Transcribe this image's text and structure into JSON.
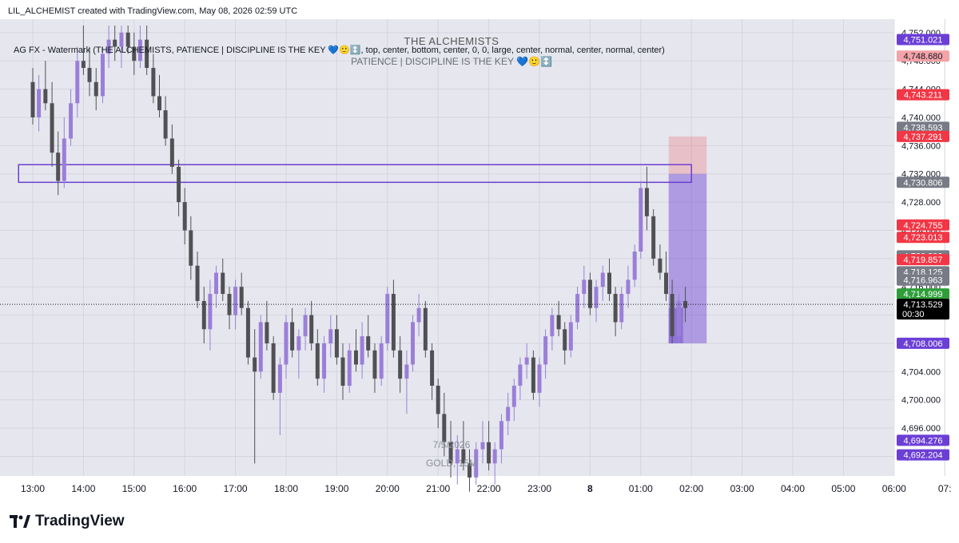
{
  "header": {
    "created_text": "LIL_ALCHEMIST created with TradingView.com, May 08, 2026 02:59 UTC"
  },
  "indicator": {
    "label": "AG FX - Watermark (THE ALCHEMISTS, PATIENCE  |  DISCIPLINE  IS THE KEY 💙🙂↕️, top, center, bottom, center, 0, 0, large, center, normal, center, normal, center)"
  },
  "watermark": {
    "title": "THE ALCHEMISTS",
    "subtitle": "PATIENCE  |  DISCIPLINE  IS THE KEY 💙🙂↕️",
    "date": "7/5/2026",
    "symbol": "GOLD, 15M"
  },
  "footer": {
    "brand": "TradingView"
  },
  "colors": {
    "bg": "#e6e7ee",
    "bull": "#9a7fd8",
    "bear": "#505055",
    "purple_badge": "#6b3fd6",
    "red_badge": "#f23645",
    "pink_badge": "#f4a3a8",
    "gray_badge": "#787b86",
    "green_badge": "#2e9e3a",
    "black_badge": "#000000",
    "zone_border": "#6a3fd0"
  },
  "chart_data": {
    "type": "candlestick",
    "symbol": "GOLD, 15M",
    "ylim": [
      4689,
      4753
    ],
    "y_ticks": [
      "4,752.000",
      "4,748.000",
      "4,744.000",
      "4,740.000",
      "4,736.000",
      "4,732.000",
      "4,728.000",
      "4,724.000",
      "4,720.000",
      "4,716.000",
      "4,712.000",
      "4,708.000",
      "4,704.000",
      "4,700.000",
      "4,696.000",
      "4,692.000"
    ],
    "x_ticks": [
      "13:00",
      "14:00",
      "15:00",
      "16:00",
      "17:00",
      "18:00",
      "19:00",
      "20:00",
      "21:00",
      "22:00",
      "23:00",
      "8",
      "01:00",
      "02:00",
      "03:00",
      "04:00",
      "05:00",
      "06:00",
      "07:"
    ],
    "current_price": 4713.529,
    "countdown": "00:30",
    "price_labels": [
      {
        "text": "4,751.021",
        "value": 4751.021,
        "style": "purple"
      },
      {
        "text": "4,748.680",
        "value": 4748.68,
        "style": "pink"
      },
      {
        "text": "4,743.211",
        "value": 4743.211,
        "style": "red"
      },
      {
        "text": "4,738.593",
        "value": 4738.593,
        "style": "gray"
      },
      {
        "text": "4,737.291",
        "value": 4737.291,
        "style": "red"
      },
      {
        "text": "4,730.806",
        "value": 4730.806,
        "style": "gray"
      },
      {
        "text": "4,724.755",
        "value": 4724.755,
        "style": "red"
      },
      {
        "text": "4,723.013",
        "value": 4723.013,
        "style": "red"
      },
      {
        "text": "4,720.390",
        "value": 4720.39,
        "style": "gray"
      },
      {
        "text": "4,719.857",
        "value": 4719.857,
        "style": "red"
      },
      {
        "text": "4,718.125",
        "value": 4718.125,
        "style": "gray"
      },
      {
        "text": "4,716.963",
        "value": 4716.963,
        "style": "gray"
      },
      {
        "text": "4,714.999",
        "value": 4714.999,
        "style": "green"
      },
      {
        "text": "4,713.529",
        "value": 4713.529,
        "style": "black"
      },
      {
        "text": "4,708.006",
        "value": 4708.006,
        "style": "purple"
      },
      {
        "text": "4,694.276",
        "value": 4694.276,
        "style": "purple"
      },
      {
        "text": "4,692.204",
        "value": 4692.204,
        "style": "purple"
      }
    ],
    "zone": {
      "t_start": 12.72,
      "t_end": 26.0,
      "top": 4733.3,
      "bottom": 4730.8
    },
    "short_position": {
      "t_start": 25.55,
      "t_end": 26.3,
      "entry": 4732.0,
      "stop": 4737.291,
      "target": 4708.006
    },
    "candles": [
      [
        13.0,
        4745,
        4747,
        4739,
        4740
      ],
      [
        13.12,
        4740,
        4746,
        4738,
        4744
      ],
      [
        13.25,
        4744,
        4748,
        4741,
        4742
      ],
      [
        13.38,
        4742,
        4745,
        4733,
        4735
      ],
      [
        13.5,
        4735,
        4738,
        4729,
        4731
      ],
      [
        13.62,
        4731,
        4740,
        4730,
        4737
      ],
      [
        13.75,
        4737,
        4744,
        4736,
        4742
      ],
      [
        13.88,
        4742,
        4750,
        4740,
        4748
      ],
      [
        14.0,
        4748,
        4753,
        4746,
        4747
      ],
      [
        14.12,
        4747,
        4750,
        4743,
        4745
      ],
      [
        14.25,
        4745,
        4747,
        4741,
        4743
      ],
      [
        14.38,
        4743,
        4750,
        4742,
        4749
      ],
      [
        14.5,
        4749,
        4753,
        4747,
        4751
      ],
      [
        14.62,
        4751,
        4753,
        4748,
        4750
      ],
      [
        14.75,
        4750,
        4753,
        4747,
        4752
      ],
      [
        14.88,
        4752,
        4753,
        4749,
        4750
      ],
      [
        15.0,
        4750,
        4752,
        4746,
        4748
      ],
      [
        15.12,
        4748,
        4753,
        4747,
        4751
      ],
      [
        15.25,
        4751,
        4753,
        4746,
        4747
      ],
      [
        15.38,
        4747,
        4749,
        4742,
        4743
      ],
      [
        15.5,
        4743,
        4746,
        4740,
        4741
      ],
      [
        15.62,
        4741,
        4743,
        4736,
        4737
      ],
      [
        15.75,
        4737,
        4739,
        4732,
        4733
      ],
      [
        15.88,
        4733,
        4734,
        4726,
        4728
      ],
      [
        16.0,
        4728,
        4730,
        4722,
        4724
      ],
      [
        16.12,
        4724,
        4726,
        4717,
        4719
      ],
      [
        16.25,
        4719,
        4721,
        4713,
        4714
      ],
      [
        16.38,
        4714,
        4716,
        4708,
        4710
      ],
      [
        16.5,
        4710,
        4717,
        4707,
        4715
      ],
      [
        16.62,
        4715,
        4719,
        4713,
        4718
      ],
      [
        16.75,
        4718,
        4720,
        4714,
        4715
      ],
      [
        16.88,
        4715,
        4716,
        4710,
        4712
      ],
      [
        17.0,
        4712,
        4717,
        4710,
        4716
      ],
      [
        17.12,
        4716,
        4718,
        4712,
        4713
      ],
      [
        17.25,
        4713,
        4714,
        4705,
        4706
      ],
      [
        17.38,
        4706,
        4710,
        4691,
        4704
      ],
      [
        17.5,
        4704,
        4712,
        4703,
        4711
      ],
      [
        17.62,
        4711,
        4714,
        4707,
        4708
      ],
      [
        17.75,
        4708,
        4709,
        4700,
        4701
      ],
      [
        17.88,
        4701,
        4706,
        4695,
        4705
      ],
      [
        18.0,
        4705,
        4712,
        4703,
        4711
      ],
      [
        18.12,
        4711,
        4713,
        4706,
        4707
      ],
      [
        18.25,
        4707,
        4710,
        4703,
        4709
      ],
      [
        18.38,
        4709,
        4713,
        4707,
        4712
      ],
      [
        18.5,
        4712,
        4714,
        4707,
        4708
      ],
      [
        18.62,
        4708,
        4710,
        4702,
        4703
      ],
      [
        18.75,
        4703,
        4709,
        4701,
        4708
      ],
      [
        18.88,
        4708,
        4712,
        4706,
        4710
      ],
      [
        19.0,
        4710,
        4712,
        4705,
        4706
      ],
      [
        19.12,
        4706,
        4708,
        4700,
        4702
      ],
      [
        19.25,
        4702,
        4708,
        4701,
        4707
      ],
      [
        19.38,
        4707,
        4710,
        4704,
        4705
      ],
      [
        19.5,
        4705,
        4711,
        4703,
        4709
      ],
      [
        19.62,
        4709,
        4712,
        4706,
        4707
      ],
      [
        19.75,
        4707,
        4708,
        4701,
        4703
      ],
      [
        19.88,
        4703,
        4709,
        4702,
        4708
      ],
      [
        20.0,
        4708,
        4716,
        4707,
        4715
      ],
      [
        20.12,
        4715,
        4717,
        4706,
        4707
      ],
      [
        20.25,
        4707,
        4709,
        4701,
        4703
      ],
      [
        20.38,
        4703,
        4707,
        4698,
        4705
      ],
      [
        20.5,
        4705,
        4712,
        4704,
        4711
      ],
      [
        20.62,
        4711,
        4715,
        4709,
        4713
      ],
      [
        20.75,
        4713,
        4714,
        4706,
        4707
      ],
      [
        20.88,
        4707,
        4708,
        4700,
        4702
      ],
      [
        21.0,
        4702,
        4703,
        4696,
        4698
      ],
      [
        21.12,
        4698,
        4701,
        4692,
        4694
      ],
      [
        21.25,
        4694,
        4697,
        4689,
        4691
      ],
      [
        21.38,
        4691,
        4695,
        4688,
        4693
      ],
      [
        21.5,
        4693,
        4697,
        4690,
        4691
      ],
      [
        21.62,
        4691,
        4693,
        4687,
        4689
      ],
      [
        21.75,
        4689,
        4694,
        4688,
        4693
      ],
      [
        21.88,
        4693,
        4697,
        4691,
        4694
      ],
      [
        22.0,
        4694,
        4697,
        4690,
        4691
      ],
      [
        22.12,
        4691,
        4694,
        4688,
        4693
      ],
      [
        22.25,
        4693,
        4698,
        4691,
        4697
      ],
      [
        22.38,
        4697,
        4701,
        4695,
        4699
      ],
      [
        22.5,
        4699,
        4703,
        4697,
        4702
      ],
      [
        22.62,
        4702,
        4706,
        4700,
        4705
      ],
      [
        22.75,
        4705,
        4708,
        4703,
        4706
      ],
      [
        22.88,
        4706,
        4707,
        4700,
        4701
      ],
      [
        23.0,
        4701,
        4706,
        4699,
        4705
      ],
      [
        23.12,
        4705,
        4710,
        4703,
        4709
      ],
      [
        23.25,
        4709,
        4713,
        4707,
        4712
      ],
      [
        23.38,
        4712,
        4714,
        4709,
        4710
      ],
      [
        23.5,
        4710,
        4711,
        4705,
        4707
      ],
      [
        23.62,
        4707,
        4712,
        4706,
        4711
      ],
      [
        23.75,
        4711,
        4716,
        4710,
        4715
      ],
      [
        23.88,
        4715,
        4719,
        4713,
        4717
      ],
      [
        24.0,
        4717,
        4718,
        4712,
        4713
      ],
      [
        24.12,
        4713,
        4717,
        4711,
        4716
      ],
      [
        24.25,
        4716,
        4719,
        4714,
        4718
      ],
      [
        24.38,
        4718,
        4720,
        4714,
        4715
      ],
      [
        24.5,
        4715,
        4716,
        4709,
        4711
      ],
      [
        24.62,
        4711,
        4716,
        4710,
        4715
      ],
      [
        24.75,
        4715,
        4719,
        4713,
        4717
      ],
      [
        24.88,
        4717,
        4722,
        4716,
        4721
      ],
      [
        25.0,
        4721,
        4731,
        4720,
        4730
      ],
      [
        25.12,
        4730,
        4733,
        4724,
        4726
      ],
      [
        25.25,
        4726,
        4727,
        4719,
        4720
      ],
      [
        25.38,
        4720,
        4722,
        4717,
        4718
      ],
      [
        25.5,
        4718,
        4721,
        4714,
        4715
      ],
      [
        25.62,
        4715,
        4717,
        4708,
        4709
      ],
      [
        25.75,
        4709,
        4715,
        4708,
        4714
      ],
      [
        25.88,
        4714,
        4716,
        4711,
        4713
      ]
    ]
  }
}
